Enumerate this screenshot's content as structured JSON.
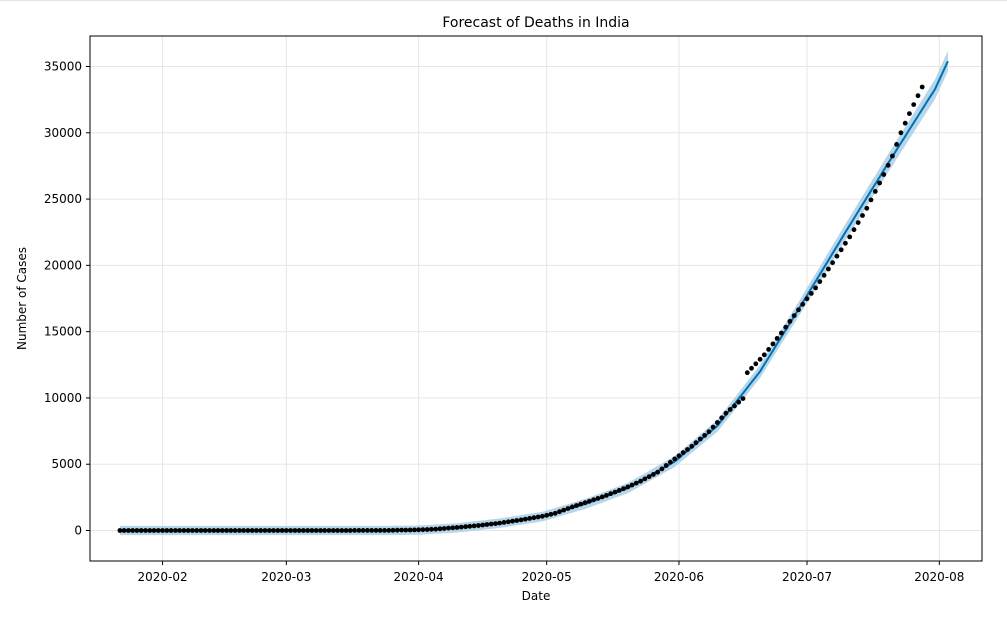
{
  "chart_data": {
    "type": "line",
    "title": "Forecast of Deaths in India",
    "xlabel": "Date",
    "ylabel": "Number of Cases",
    "grid": true,
    "xlim": [
      "2020-01-15",
      "2020-08-11"
    ],
    "ylim": [
      -2300,
      37300
    ],
    "x_ticks": [
      "2020-02",
      "2020-03",
      "2020-04",
      "2020-05",
      "2020-06",
      "2020-07",
      "2020-08"
    ],
    "y_ticks": [
      0,
      5000,
      10000,
      15000,
      20000,
      25000,
      30000,
      35000
    ],
    "colors": {
      "forecast_line": "#0072B2",
      "uncertainty_band": "#a9cfe8",
      "observed_points": "#000000",
      "grid": "#e6e6e6"
    },
    "series": [
      {
        "kind": "observed",
        "points": [
          [
            "2020-01-22",
            0
          ],
          [
            "2020-02-15",
            0
          ],
          [
            "2020-03-10",
            0
          ],
          [
            "2020-03-25",
            10
          ],
          [
            "2020-04-01",
            50
          ],
          [
            "2020-04-05",
            100
          ],
          [
            "2020-04-10",
            230
          ],
          [
            "2020-04-15",
            380
          ],
          [
            "2020-04-20",
            560
          ],
          [
            "2020-04-25",
            800
          ],
          [
            "2020-04-30",
            1075
          ],
          [
            "2020-05-03",
            1300
          ],
          [
            "2020-05-07",
            1780
          ],
          [
            "2020-05-11",
            2200
          ],
          [
            "2020-05-15",
            2650
          ],
          [
            "2020-05-19",
            3150
          ],
          [
            "2020-05-23",
            3720
          ],
          [
            "2020-05-27",
            4400
          ],
          [
            "2020-05-31",
            5400
          ],
          [
            "2020-06-04",
            6350
          ],
          [
            "2020-06-08",
            7450
          ],
          [
            "2020-06-12",
            8850
          ],
          [
            "2020-06-16",
            9950
          ],
          [
            "2020-06-17",
            11900
          ],
          [
            "2020-06-21",
            13250
          ],
          [
            "2020-06-25",
            14900
          ],
          [
            "2020-06-29",
            16650
          ],
          [
            "2020-07-03",
            18300
          ],
          [
            "2020-07-07",
            20200
          ],
          [
            "2020-07-11",
            22150
          ],
          [
            "2020-07-15",
            24300
          ],
          [
            "2020-07-19",
            26850
          ],
          [
            "2020-07-21",
            28250
          ],
          [
            "2020-07-23",
            30000
          ],
          [
            "2020-07-25",
            31450
          ],
          [
            "2020-07-27",
            32800
          ],
          [
            "2020-07-28",
            33450
          ]
        ]
      },
      {
        "kind": "forecast",
        "points": [
          [
            "2020-01-22",
            0
          ],
          [
            "2020-03-25",
            0
          ],
          [
            "2020-04-01",
            30
          ],
          [
            "2020-04-10",
            200
          ],
          [
            "2020-04-20",
            550
          ],
          [
            "2020-04-30",
            1050
          ],
          [
            "2020-05-10",
            2000
          ],
          [
            "2020-05-20",
            3200
          ],
          [
            "2020-05-31",
            5200
          ],
          [
            "2020-06-10",
            7900
          ],
          [
            "2020-06-20",
            12000
          ],
          [
            "2020-06-30",
            17200
          ],
          [
            "2020-07-10",
            22500
          ],
          [
            "2020-07-20",
            27700
          ],
          [
            "2020-07-31",
            33300
          ],
          [
            "2020-08-03",
            35400
          ]
        ]
      }
    ]
  }
}
